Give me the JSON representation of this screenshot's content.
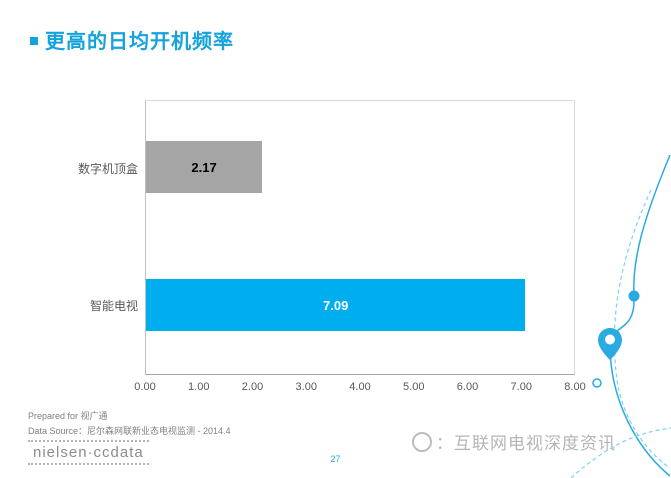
{
  "title": "更高的日均开机频率",
  "accent_color": "#14a3dc",
  "chart_data": {
    "type": "bar",
    "orientation": "horizontal",
    "title": "更高的日均开机频率",
    "categories": [
      "数字机顶盒",
      "智能电视"
    ],
    "values": [
      2.17,
      7.09
    ],
    "value_labels": [
      "2.17",
      "7.09"
    ],
    "bar_colors": [
      "#a5a5a5",
      "#00aeef"
    ],
    "value_label_colors": [
      "#000000",
      "#ffffff"
    ],
    "xlim": [
      0,
      8
    ],
    "x_ticks": [
      "0.00",
      "1.00",
      "2.00",
      "3.00",
      "4.00",
      "5.00",
      "6.00",
      "7.00",
      "8.00"
    ],
    "xlabel": "",
    "ylabel": "",
    "grid": false,
    "legend": false
  },
  "footer": {
    "prepared_for": "Prepared for 视广通",
    "data_source": "Data Source：尼尔森网联新业态电视监测 - 2014.4",
    "logo_text": "nielsen·ccdata",
    "page_number": "27"
  },
  "watermark": {
    "text": "：互联网电视深度资讯"
  },
  "decor": {
    "curve_color": "#29abe2"
  }
}
